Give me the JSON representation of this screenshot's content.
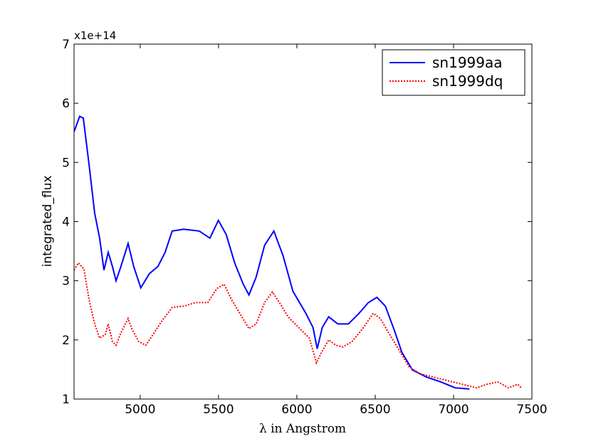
{
  "chart_data": {
    "type": "line",
    "xlabel": "λ in Angstrom",
    "ylabel": "integrated_flux",
    "y_offset_label": "x1e+14",
    "xlim": [
      4578,
      7500
    ],
    "xticks": [
      5000,
      5500,
      6000,
      6500,
      7000,
      7500
    ],
    "ylim": [
      1,
      7
    ],
    "yticks": [
      1,
      2,
      3,
      4,
      5,
      6,
      7
    ],
    "legend": "upper right",
    "series": [
      {
        "name": "sn1999aa",
        "color": "#0000ff",
        "linestyle": "solid",
        "x": [
          4578,
          4614,
          4637,
          4673,
          4710,
          4741,
          4769,
          4796,
          4823,
          4846,
          4877,
          4923,
          4959,
          5004,
          5059,
          5113,
          5159,
          5204,
          5277,
          5377,
          5445,
          5499,
          5549,
          5603,
          5658,
          5694,
          5740,
          5794,
          5853,
          5912,
          5975,
          6057,
          6103,
          6130,
          6162,
          6203,
          6261,
          6329,
          6397,
          6456,
          6511,
          6565,
          6624,
          6670,
          6738,
          6829,
          6919,
          7010,
          7101
        ],
        "values": [
          5.52,
          5.78,
          5.75,
          4.98,
          4.14,
          3.72,
          3.18,
          3.48,
          3.24,
          3.0,
          3.24,
          3.63,
          3.24,
          2.88,
          3.12,
          3.24,
          3.48,
          3.84,
          3.87,
          3.84,
          3.72,
          4.02,
          3.78,
          3.3,
          2.94,
          2.76,
          3.06,
          3.6,
          3.84,
          3.42,
          2.82,
          2.45,
          2.21,
          1.85,
          2.21,
          2.39,
          2.27,
          2.27,
          2.45,
          2.63,
          2.72,
          2.57,
          2.15,
          1.79,
          1.49,
          1.37,
          1.29,
          1.19,
          1.17
        ]
      },
      {
        "name": "sn1999dq",
        "color": "#ff0000",
        "linestyle": "dotted",
        "x": [
          4578,
          4605,
          4641,
          4673,
          4710,
          4741,
          4777,
          4796,
          4823,
          4846,
          4877,
          4923,
          4946,
          4991,
          5036,
          5082,
          5141,
          5204,
          5277,
          5354,
          5431,
          5490,
          5536,
          5581,
          5649,
          5694,
          5740,
          5794,
          5844,
          5889,
          5944,
          6012,
          6080,
          6125,
          6157,
          6203,
          6248,
          6293,
          6352,
          6420,
          6488,
          6533,
          6592,
          6647,
          6715,
          6783,
          6873,
          6964,
          7055,
          7146,
          7214,
          7282,
          7350,
          7409,
          7432
        ],
        "values": [
          3.18,
          3.3,
          3.2,
          2.69,
          2.27,
          2.03,
          2.09,
          2.27,
          1.97,
          1.91,
          2.12,
          2.36,
          2.19,
          1.97,
          1.91,
          2.09,
          2.33,
          2.55,
          2.57,
          2.63,
          2.63,
          2.87,
          2.94,
          2.69,
          2.39,
          2.19,
          2.27,
          2.63,
          2.81,
          2.63,
          2.39,
          2.21,
          2.03,
          1.61,
          1.79,
          2.0,
          1.91,
          1.88,
          1.97,
          2.19,
          2.45,
          2.36,
          2.09,
          1.85,
          1.55,
          1.43,
          1.37,
          1.31,
          1.25,
          1.19,
          1.25,
          1.29,
          1.19,
          1.25,
          1.19
        ]
      }
    ]
  }
}
